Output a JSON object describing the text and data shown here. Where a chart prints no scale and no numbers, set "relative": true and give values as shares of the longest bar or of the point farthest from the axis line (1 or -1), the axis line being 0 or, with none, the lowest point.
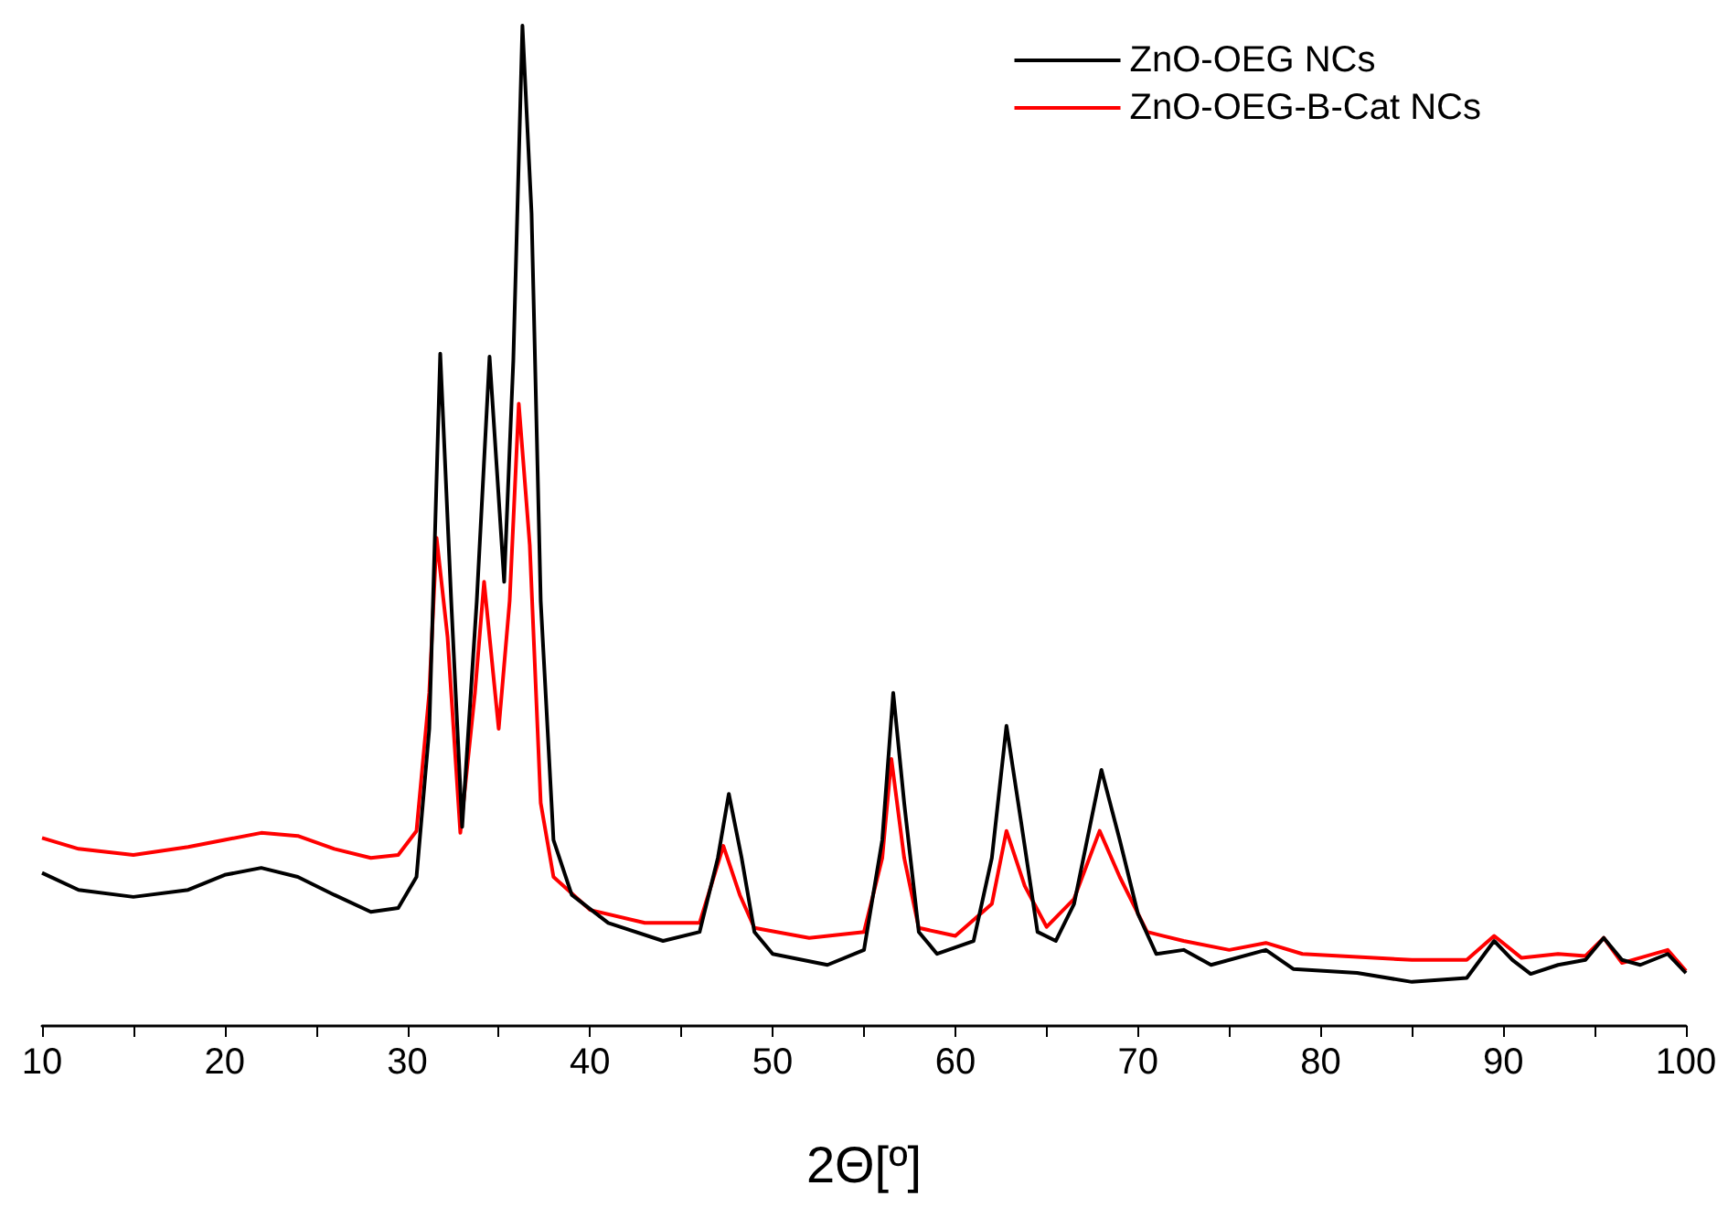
{
  "chart_data": {
    "type": "line",
    "relative": true,
    "xlabel": "2Θ[º]",
    "legend": "top right",
    "marker": "none",
    "line_style": "solid",
    "grid": false,
    "xlim": [
      10,
      100
    ],
    "xticks": [
      10,
      {
        "value": 15,
        "label": null
      },
      20,
      {
        "value": 25,
        "label": null
      },
      30,
      {
        "value": 35,
        "label": null
      },
      40,
      {
        "value": 45,
        "label": null
      },
      50,
      {
        "value": 55,
        "label": null
      },
      60,
      {
        "value": 65,
        "label": null
      },
      70,
      {
        "value": 75,
        "label": null
      },
      80,
      {
        "value": 85,
        "label": null
      },
      90,
      {
        "value": 95,
        "label": null
      },
      100
    ],
    "series": [
      {
        "name": "ZnO-OEG NCs",
        "color": "#000000",
        "x": [
          10,
          12,
          15,
          18,
          20,
          22,
          24,
          26,
          28,
          29.5,
          30.5,
          31.2,
          31.8,
          32.4,
          33,
          33.8,
          34.5,
          35.3,
          35.8,
          36.3,
          36.8,
          37.3,
          38,
          39,
          41,
          44,
          46,
          47,
          47.6,
          48.3,
          49,
          50,
          53,
          55,
          56,
          56.6,
          57.2,
          58,
          59,
          61,
          62,
          62.8,
          63.6,
          64.5,
          65.5,
          66.5,
          68,
          69,
          70,
          71,
          72.5,
          74,
          77,
          78.5,
          82,
          85,
          88,
          89.5,
          90.5,
          91.5,
          93,
          94.5,
          95.5,
          96.5,
          97.5,
          99,
          100
        ],
        "values": [
          0.153,
          0.136,
          0.129,
          0.136,
          0.151,
          0.158,
          0.149,
          0.131,
          0.114,
          0.118,
          0.149,
          0.297,
          0.672,
          0.425,
          0.199,
          0.425,
          0.669,
          0.444,
          0.665,
          1,
          0.812,
          0.425,
          0.186,
          0.131,
          0.103,
          0.085,
          0.094,
          0.168,
          0.232,
          0.168,
          0.094,
          0.072,
          0.061,
          0.076,
          0.186,
          0.333,
          0.223,
          0.094,
          0.072,
          0.085,
          0.168,
          0.3,
          0.204,
          0.094,
          0.085,
          0.122,
          0.256,
          0.186,
          0.112,
          0.072,
          0.076,
          0.061,
          0.076,
          0.057,
          0.053,
          0.044,
          0.048,
          0.085,
          0.066,
          0.052,
          0.061,
          0.066,
          0.088,
          0.066,
          0.061,
          0.072,
          0.053
        ]
      },
      {
        "name": "ZnO-OEG-B-Cat NCs",
        "color": "#ff0000",
        "x": [
          10,
          12,
          15,
          18,
          20,
          22,
          24,
          26,
          28,
          29.5,
          30.5,
          31.2,
          31.6,
          32.2,
          32.9,
          33.7,
          34.2,
          35,
          35.6,
          36.1,
          36.7,
          37.3,
          38,
          40,
          43,
          46,
          47.3,
          48.2,
          49,
          52,
          55,
          56,
          56.5,
          57.2,
          58,
          60,
          62,
          62.8,
          63.8,
          65,
          66.5,
          67.9,
          69,
          70.5,
          72.5,
          75,
          77,
          79,
          85,
          88,
          89.5,
          91,
          93,
          94.5,
          95.5,
          96.5,
          99,
          100
        ],
        "values": [
          0.188,
          0.177,
          0.171,
          0.179,
          0.186,
          0.193,
          0.19,
          0.177,
          0.168,
          0.171,
          0.195,
          0.333,
          0.488,
          0.389,
          0.193,
          0.333,
          0.444,
          0.297,
          0.425,
          0.622,
          0.481,
          0.223,
          0.149,
          0.116,
          0.103,
          0.103,
          0.18,
          0.131,
          0.098,
          0.088,
          0.094,
          0.168,
          0.267,
          0.168,
          0.098,
          0.09,
          0.122,
          0.195,
          0.14,
          0.099,
          0.127,
          0.195,
          0.149,
          0.094,
          0.085,
          0.076,
          0.083,
          0.072,
          0.066,
          0.066,
          0.09,
          0.068,
          0.072,
          0.07,
          0.088,
          0.063,
          0.076,
          0.055
        ]
      }
    ]
  }
}
